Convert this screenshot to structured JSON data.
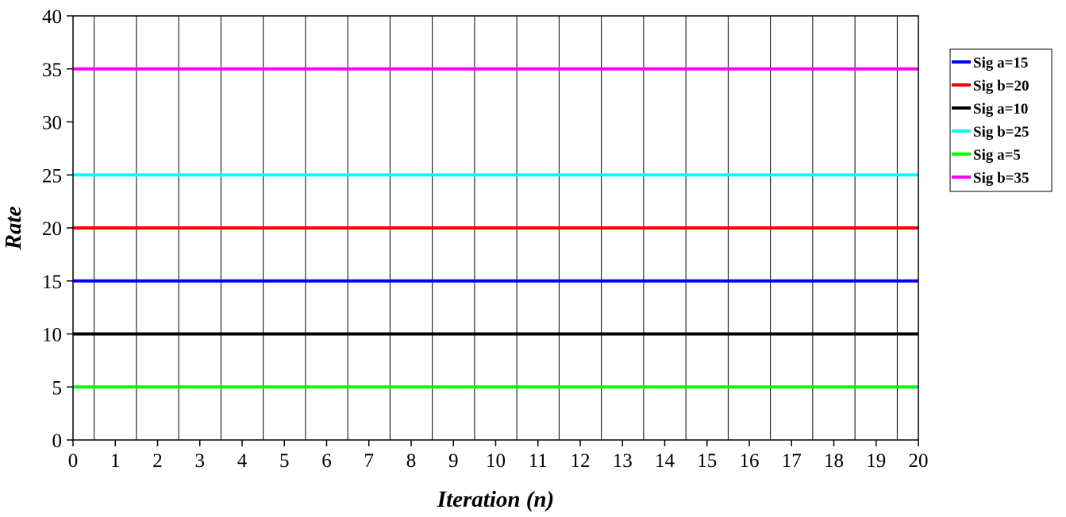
{
  "chart_data": {
    "type": "line",
    "xlabel": "Iteration (n)",
    "ylabel": "Rate",
    "xlim": [
      0,
      20
    ],
    "ylim": [
      0,
      40
    ],
    "x_ticks": [
      0,
      1,
      2,
      3,
      4,
      5,
      6,
      7,
      8,
      9,
      10,
      11,
      12,
      13,
      14,
      15,
      16,
      17,
      18,
      19,
      20
    ],
    "y_ticks": [
      0,
      5,
      10,
      15,
      20,
      25,
      30,
      35,
      40
    ],
    "grid": "vertical gridlines at every half step between integer iterations",
    "legend_position": "right",
    "series": [
      {
        "name": "Sig a=15",
        "color": "#0000ff",
        "x": [
          0,
          20
        ],
        "y": [
          15,
          15
        ]
      },
      {
        "name": "Sig b=20",
        "color": "#ff0000",
        "x": [
          0,
          20
        ],
        "y": [
          20,
          20
        ]
      },
      {
        "name": "Sig a=10",
        "color": "#000000",
        "x": [
          0,
          20
        ],
        "y": [
          10,
          10
        ]
      },
      {
        "name": "Sig b=25",
        "color": "#00ffff",
        "x": [
          0,
          20
        ],
        "y": [
          25,
          25
        ]
      },
      {
        "name": "Sig a=5",
        "color": "#00ff00",
        "x": [
          0,
          20
        ],
        "y": [
          5,
          5
        ]
      },
      {
        "name": "Sig b=35",
        "color": "#ff00ff",
        "x": [
          0,
          20
        ],
        "y": [
          35,
          35
        ]
      }
    ]
  }
}
